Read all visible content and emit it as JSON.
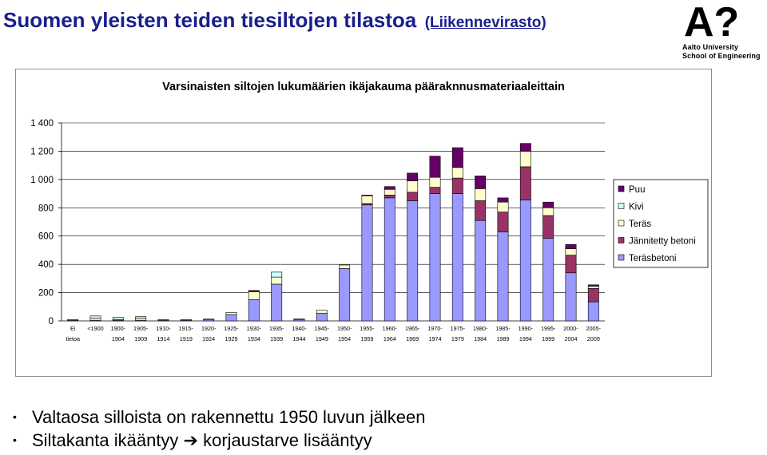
{
  "slide": {
    "title": "Suomen yleisten teiden tiesiltojen tilastoa",
    "source_link": "(Liikennevirasto)"
  },
  "logo": {
    "mark": "A?",
    "line1": "Aalto University",
    "line2": "School of Engineering"
  },
  "bullets": [
    {
      "text": "Valtaosa silloista on rakennettu 1950 luvun jälkeen"
    },
    {
      "before": "Siltakanta ikääntyy ",
      "arrow": "➔",
      "after": " korjaustarve lisääntyy"
    }
  ],
  "chart_data": {
    "type": "bar",
    "stacked": true,
    "title": "Varsinaisten siltojen lukumäärien ikäjakauma pääraknnusmateriaaleittain",
    "categories": [
      [
        "Ei",
        "tietoa"
      ],
      [
        "<1900",
        ""
      ],
      [
        "1900-",
        "1904"
      ],
      [
        "1905-",
        "1909"
      ],
      [
        "1910-",
        "1914"
      ],
      [
        "1915-",
        "1919"
      ],
      [
        "1920-",
        "1924"
      ],
      [
        "1925-",
        "1929"
      ],
      [
        "1930-",
        "1934"
      ],
      [
        "1935-",
        "1939"
      ],
      [
        "1940-",
        "1944"
      ],
      [
        "1945-",
        "1949"
      ],
      [
        "1950-",
        "1954"
      ],
      [
        "1955-",
        "1959"
      ],
      [
        "1960-",
        "1964"
      ],
      [
        "1965-",
        "1969"
      ],
      [
        "1970-",
        "1974"
      ],
      [
        "1975-",
        "1979"
      ],
      [
        "1980-",
        "1984"
      ],
      [
        "1985-",
        "1989"
      ],
      [
        "1990-",
        "1994"
      ],
      [
        "1995-",
        "1999"
      ],
      [
        "2000-",
        "2004"
      ],
      [
        "2005-",
        "2009"
      ]
    ],
    "series": [
      {
        "name": "Teräsbetoni",
        "color": "#9999ff",
        "values": [
          5,
          5,
          5,
          5,
          5,
          5,
          8,
          45,
          150,
          260,
          10,
          55,
          370,
          820,
          870,
          850,
          900,
          900,
          710,
          630,
          855,
          585,
          340,
          135
        ]
      },
      {
        "name": "Jännitetty betoni",
        "color": "#993366",
        "values": [
          0,
          0,
          0,
          0,
          0,
          0,
          0,
          0,
          0,
          0,
          0,
          0,
          0,
          10,
          20,
          60,
          45,
          110,
          140,
          140,
          235,
          160,
          125,
          95
        ]
      },
      {
        "name": "Teräs",
        "color": "#ffffcc",
        "values": [
          5,
          15,
          5,
          15,
          5,
          5,
          5,
          15,
          55,
          50,
          5,
          20,
          25,
          55,
          40,
          80,
          70,
          75,
          85,
          70,
          110,
          55,
          45,
          15
        ]
      },
      {
        "name": "Kivi",
        "color": "#ccffff",
        "values": [
          0,
          15,
          15,
          10,
          0,
          0,
          0,
          0,
          5,
          35,
          0,
          0,
          0,
          0,
          0,
          0,
          0,
          0,
          0,
          0,
          0,
          0,
          0,
          0
        ]
      },
      {
        "name": "Puu",
        "color": "#660066",
        "values": [
          0,
          0,
          0,
          0,
          0,
          0,
          0,
          0,
          5,
          0,
          0,
          0,
          0,
          5,
          20,
          55,
          150,
          140,
          90,
          30,
          55,
          40,
          30,
          10
        ]
      }
    ],
    "ylim": [
      0,
      1400
    ],
    "yticks": [
      0,
      200,
      400,
      600,
      800,
      1000,
      1200,
      1400
    ],
    "ytick_labels": [
      "0",
      "200",
      "400",
      "600",
      "800",
      "1 000",
      "1 200",
      "1 400"
    ],
    "xlabel": "",
    "ylabel": "",
    "grid": true,
    "legend": {
      "placement": "right",
      "order": [
        "Puu",
        "Kivi",
        "Teräs",
        "Jännitetty betoni",
        "Teräsbetoni"
      ]
    }
  }
}
